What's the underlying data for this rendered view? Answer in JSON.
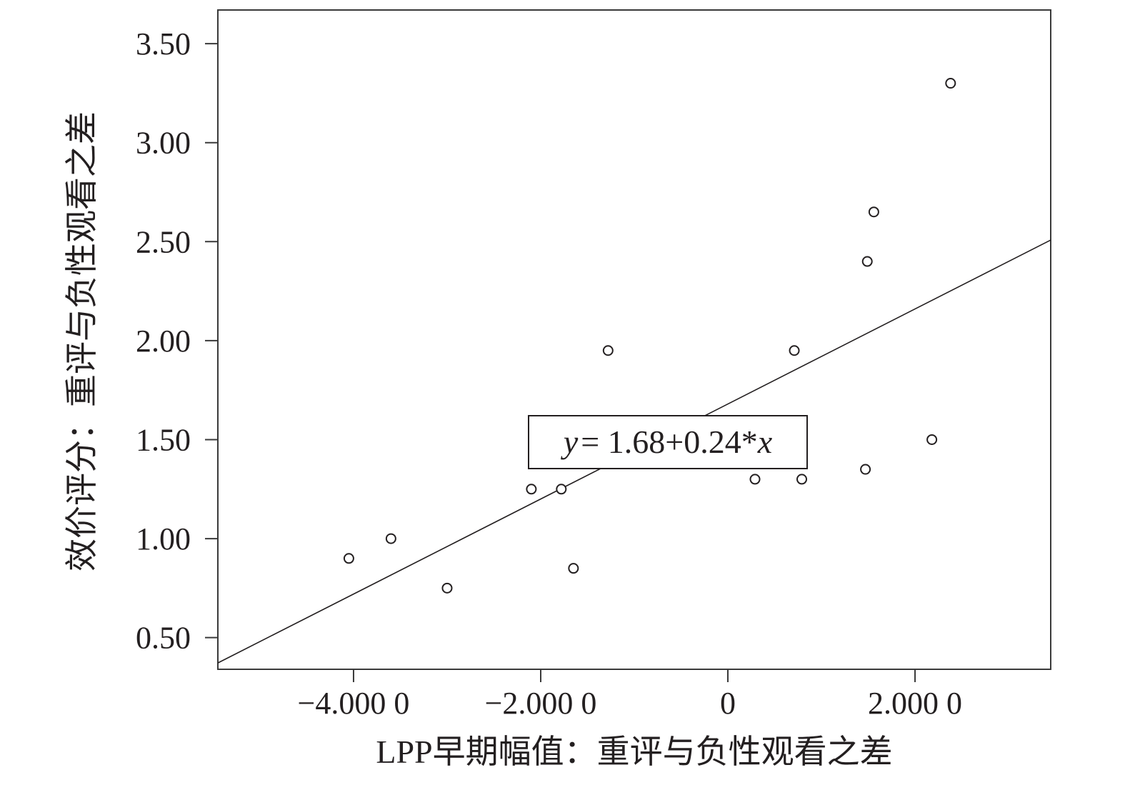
{
  "chart_data": {
    "type": "scatter",
    "xlabel": "LPP早期幅值：重评与负性观看之差",
    "ylabel": "效价评分：重评与负性观看之差",
    "xlim": [
      -5.45,
      3.45
    ],
    "ylim": [
      0.34,
      3.67
    ],
    "x_ticks": [
      {
        "value": -4.0,
        "label": "−4.000 0"
      },
      {
        "value": -2.0,
        "label": "−2.000 0"
      },
      {
        "value": 0,
        "label": "0"
      },
      {
        "value": 2.0,
        "label": "2.000 0"
      }
    ],
    "y_ticks": [
      {
        "value": 0.5,
        "label": "0.50"
      },
      {
        "value": 1.0,
        "label": "1.00"
      },
      {
        "value": 1.5,
        "label": "1.50"
      },
      {
        "value": 2.0,
        "label": "2.00"
      },
      {
        "value": 2.5,
        "label": "2.50"
      },
      {
        "value": 3.0,
        "label": "3.00"
      },
      {
        "value": 3.5,
        "label": "3.50"
      }
    ],
    "points": [
      {
        "x": -4.05,
        "y": 0.9
      },
      {
        "x": -3.6,
        "y": 1.0
      },
      {
        "x": -3.0,
        "y": 0.75
      },
      {
        "x": -2.1,
        "y": 1.25
      },
      {
        "x": -1.78,
        "y": 1.25
      },
      {
        "x": -1.65,
        "y": 0.85
      },
      {
        "x": -1.28,
        "y": 1.95
      },
      {
        "x": 0.29,
        "y": 1.3
      },
      {
        "x": 0.71,
        "y": 1.95
      },
      {
        "x": 0.79,
        "y": 1.3
      },
      {
        "x": 1.47,
        "y": 1.35
      },
      {
        "x": 1.49,
        "y": 2.4
      },
      {
        "x": 1.56,
        "y": 2.65
      },
      {
        "x": 2.18,
        "y": 1.5
      },
      {
        "x": 2.38,
        "y": 3.3
      }
    ],
    "fit_line": {
      "intercept": 1.68,
      "slope": 0.24
    },
    "equation": {
      "y": "y",
      "eq": "=",
      "rhs": " 1.68+0.24*",
      "x": "x"
    },
    "grid": false,
    "legend": "none"
  }
}
